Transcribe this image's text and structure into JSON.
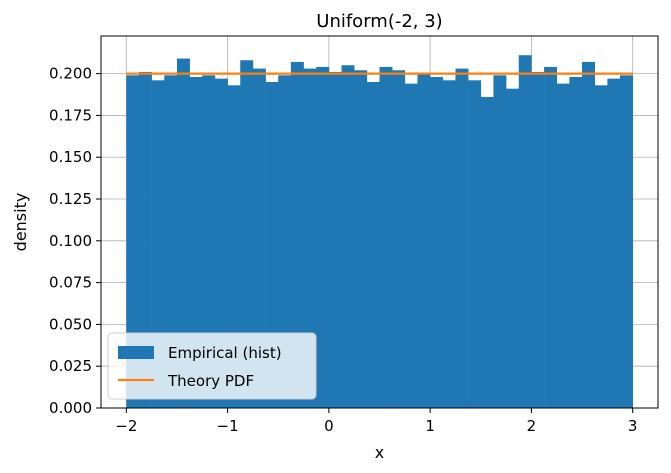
{
  "chart_data": {
    "type": "bar",
    "title": "Uniform(-2, 3)",
    "xlabel": "x",
    "ylabel": "density",
    "xlim": [
      -2.25,
      3.25
    ],
    "ylim": [
      0,
      0.2225
    ],
    "grid": true,
    "legend_position": "lower-left",
    "bin_range": [
      -2,
      3
    ],
    "bin_width": 0.125,
    "x_ticks": [
      -2,
      -1,
      0,
      1,
      2,
      3
    ],
    "x_tick_labels": [
      "−2",
      "−1",
      "0",
      "1",
      "2",
      "3"
    ],
    "y_ticks": [
      0,
      0.025,
      0.05,
      0.075,
      0.1,
      0.125,
      0.15,
      0.175,
      0.2
    ],
    "y_tick_labels": [
      "0.000",
      "0.025",
      "0.050",
      "0.075",
      "0.100",
      "0.125",
      "0.150",
      "0.175",
      "0.200"
    ],
    "series": [
      {
        "name": "Empirical (hist)",
        "kind": "histogram",
        "color": "#1f77b4",
        "values": [
          0.199,
          0.201,
          0.196,
          0.199,
          0.209,
          0.198,
          0.199,
          0.197,
          0.193,
          0.208,
          0.203,
          0.195,
          0.199,
          0.207,
          0.203,
          0.204,
          0.201,
          0.205,
          0.202,
          0.195,
          0.204,
          0.202,
          0.194,
          0.2,
          0.198,
          0.196,
          0.203,
          0.196,
          0.186,
          0.199,
          0.191,
          0.211,
          0.201,
          0.204,
          0.194,
          0.198,
          0.207,
          0.193,
          0.197,
          0.199
        ]
      },
      {
        "name": "Theory PDF",
        "kind": "line",
        "color": "#ff7f0e",
        "x": [
          -2,
          3
        ],
        "y": [
          0.2,
          0.2
        ]
      }
    ]
  }
}
